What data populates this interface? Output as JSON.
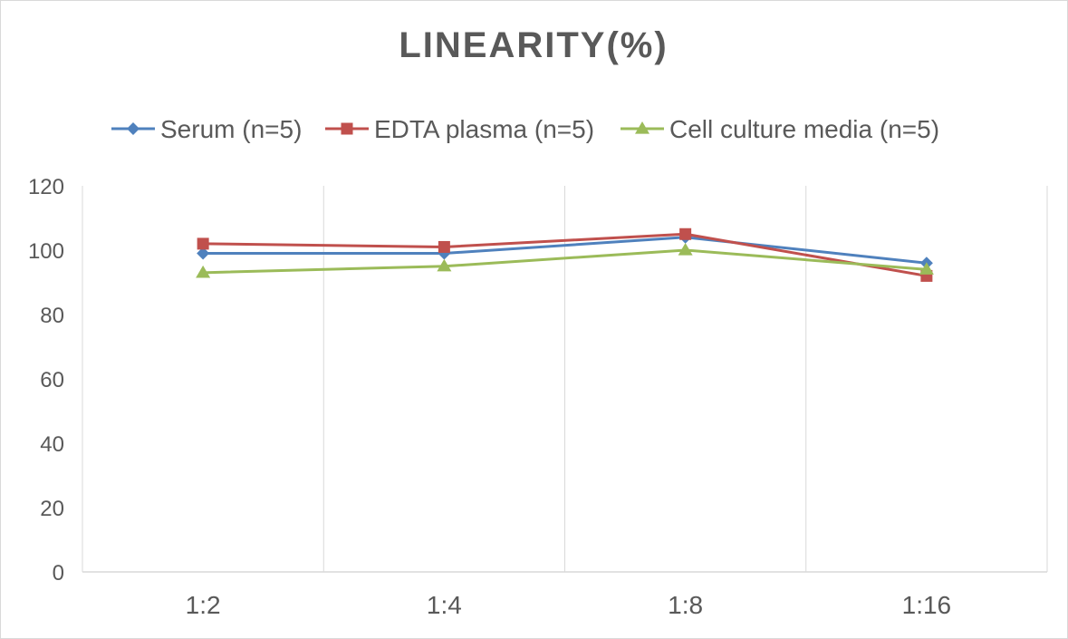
{
  "chart_data": {
    "type": "line",
    "title": "LINEARITY(%)",
    "categories": [
      "1:2",
      "1:4",
      "1:8",
      "1:16"
    ],
    "series": [
      {
        "name": "Serum (n=5)",
        "values": [
          99,
          99,
          104,
          96
        ],
        "color": "#4f81bd",
        "marker": "diamond"
      },
      {
        "name": "EDTA plasma (n=5)",
        "values": [
          102,
          101,
          105,
          92
        ],
        "color": "#c0504d",
        "marker": "square"
      },
      {
        "name": "Cell culture media (n=5)",
        "values": [
          93,
          95,
          100,
          94
        ],
        "color": "#9bbb59",
        "marker": "triangle"
      }
    ],
    "ylim": [
      0,
      120
    ],
    "yticks": [
      "0",
      "20",
      "40",
      "60",
      "80",
      "100",
      "120"
    ],
    "legend_position": "top",
    "grid": "vertical"
  }
}
